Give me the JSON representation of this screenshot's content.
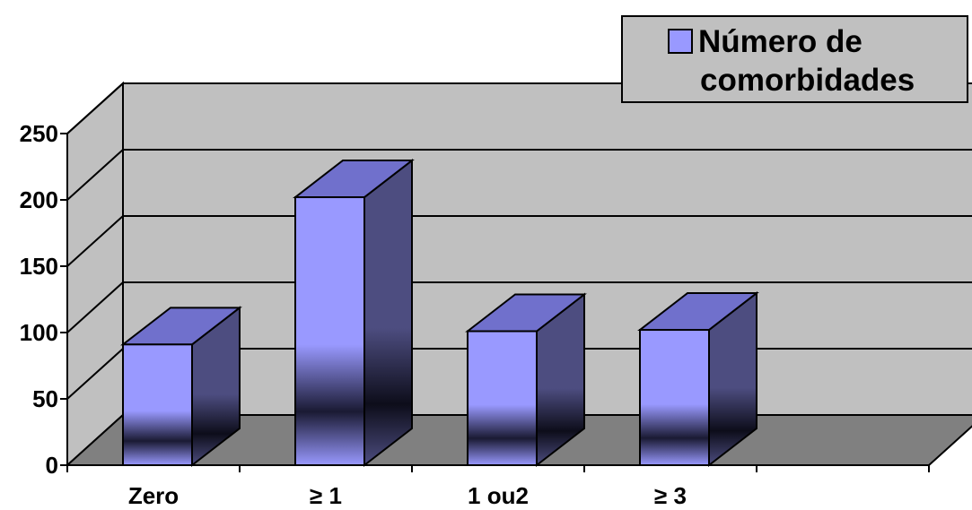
{
  "chart_data": {
    "type": "bar",
    "categories": [
      "Zero",
      "≥ 1",
      "1 ou2",
      "≥ 3"
    ],
    "series": [
      {
        "name": "Número de comorbidades",
        "values": [
          91,
          202,
          101,
          102
        ]
      }
    ],
    "legend_lines": [
      "Número de",
      "comorbidades"
    ],
    "ylim": [
      0,
      250
    ],
    "yticks": [
      0,
      50,
      100,
      150,
      200,
      250
    ],
    "grid": true,
    "legend_position": "top-right",
    "style": "3d",
    "colors": {
      "bar_front": "#9999ff",
      "bar_front_shadow": "#1a1a33",
      "bar_top": "#7070cc",
      "bar_side": "#4d4d80",
      "wall": "#c0c0c0",
      "floor": "#808080",
      "legend_bg": "#c0c0c0"
    }
  }
}
